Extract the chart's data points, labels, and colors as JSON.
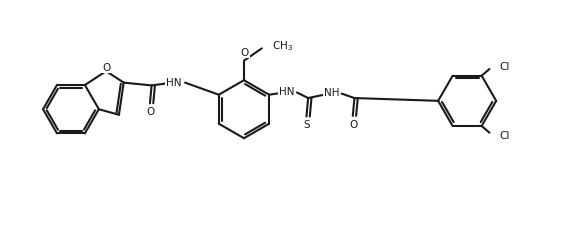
{
  "background_color": "#ffffff",
  "line_color": "#1a1a1a",
  "line_width": 1.5,
  "figsize": [
    5.66,
    2.26
  ],
  "dpi": 100,
  "xlim": [
    0,
    10
  ],
  "ylim": [
    0,
    4
  ]
}
